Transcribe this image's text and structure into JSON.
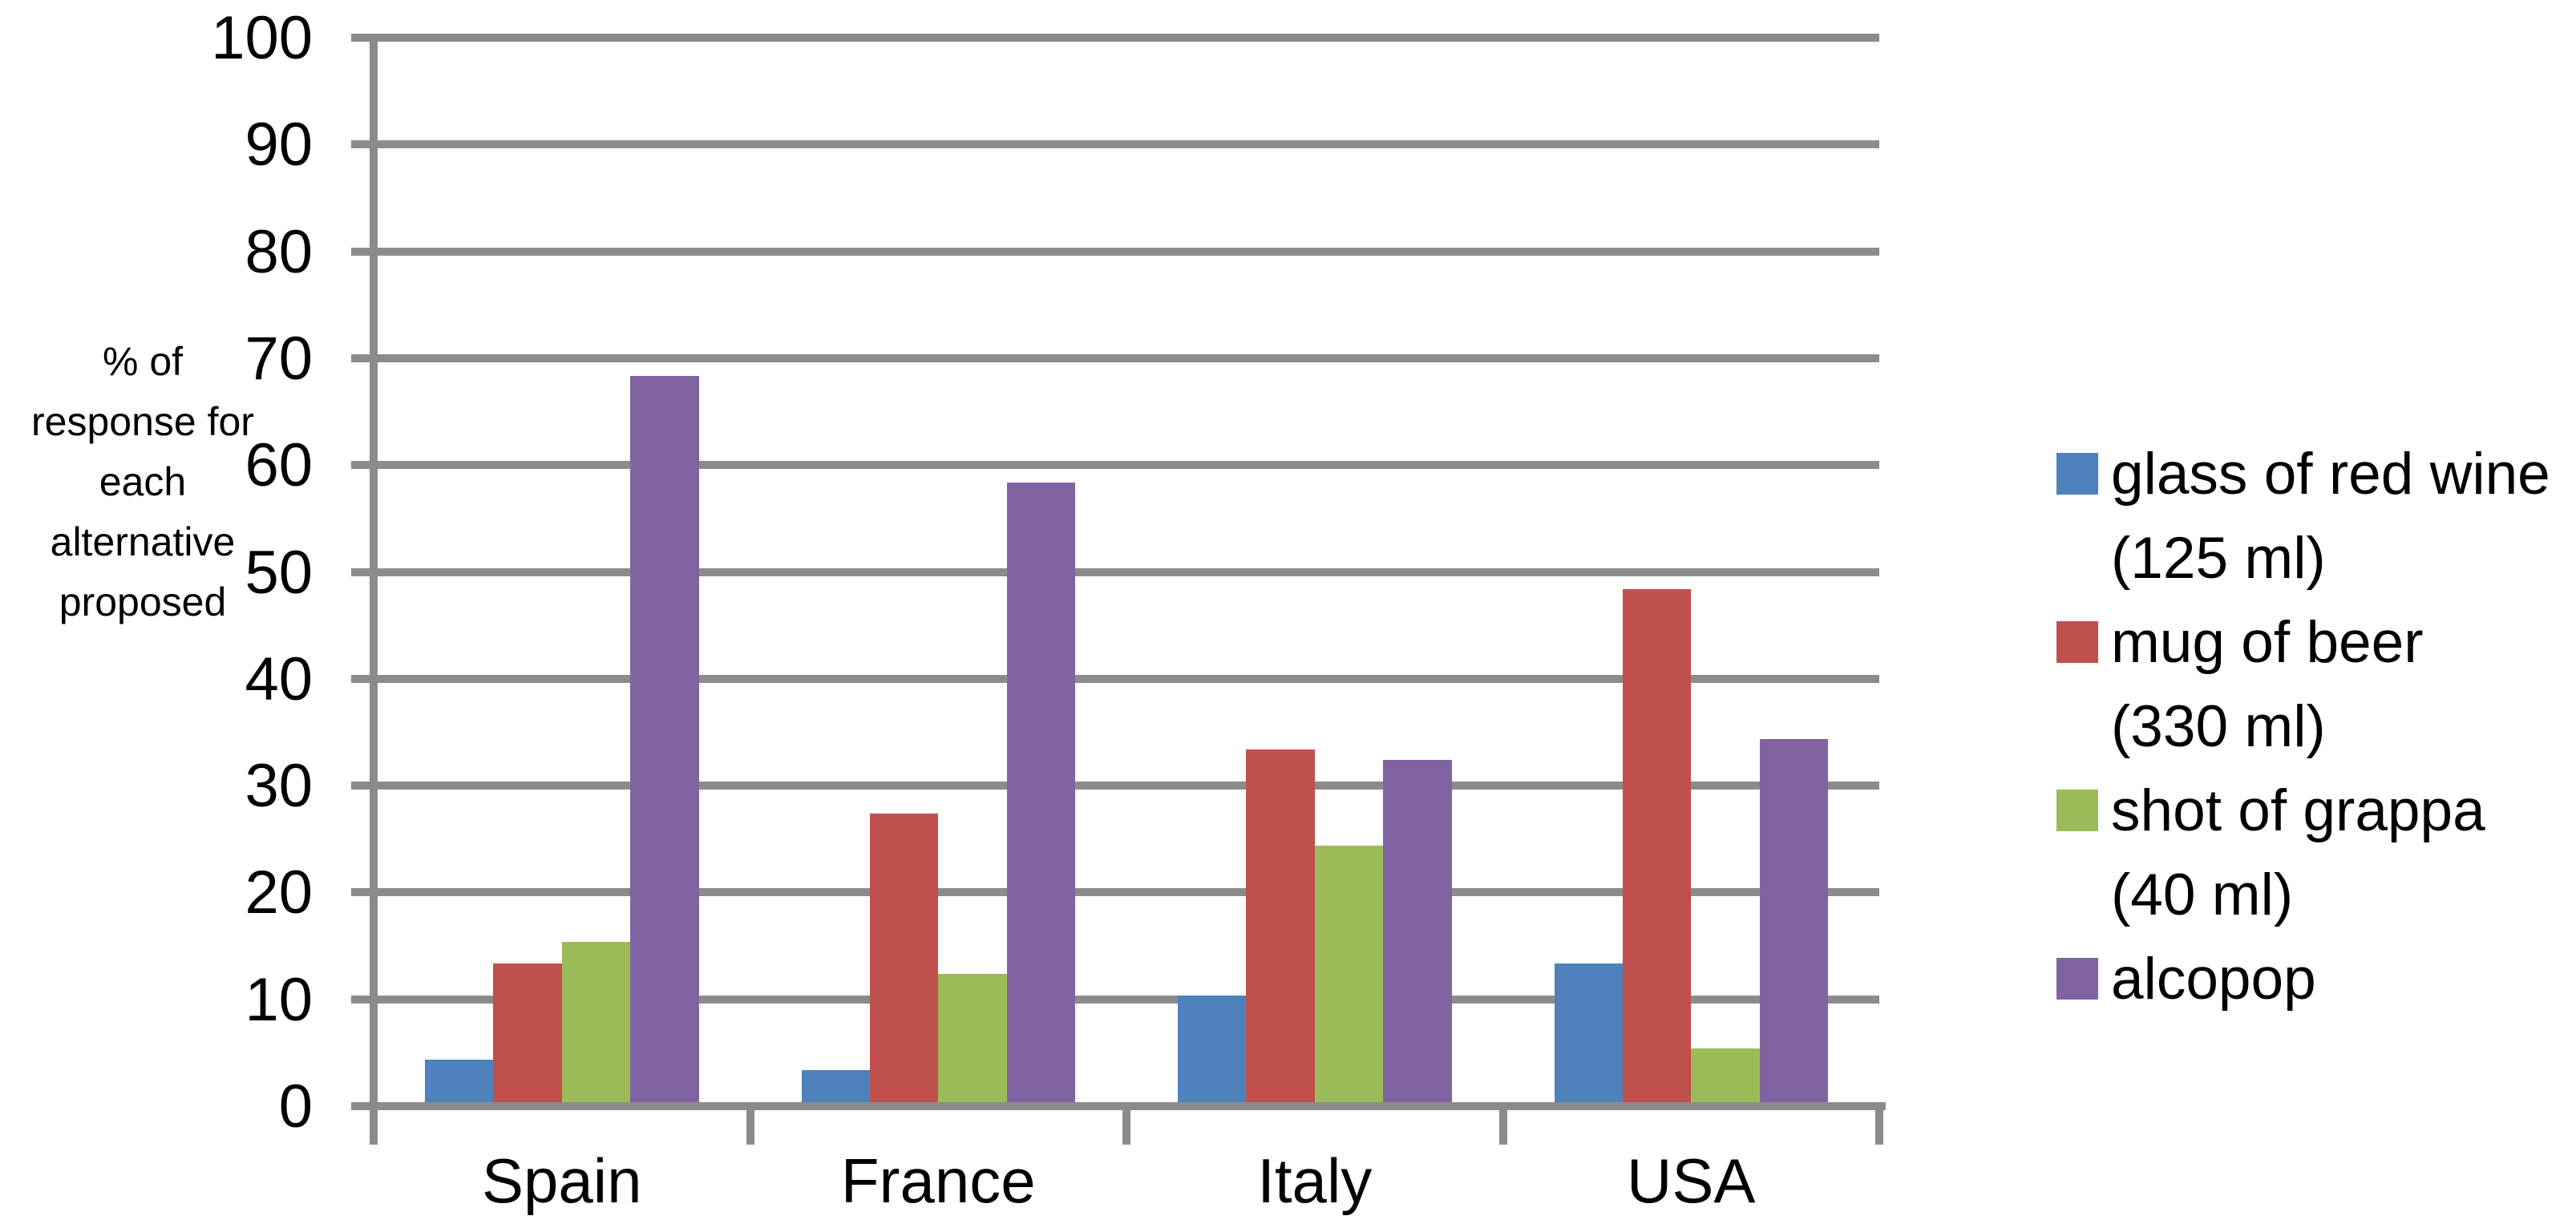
{
  "chart_data": {
    "type": "bar",
    "title": "",
    "categories": [
      "Spain",
      "France",
      "Italy",
      "USA"
    ],
    "series": [
      {
        "name": "glass of red wine (125 ml)",
        "legend_lines": "glass of red wine\n(125 ml)",
        "color": "#4F81BD",
        "values": [
          4,
          3,
          10,
          13
        ]
      },
      {
        "name": "mug of beer (330 ml)",
        "legend_lines": "mug of beer\n(330 ml)",
        "color": "#C0504D",
        "values": [
          13,
          27,
          33,
          48
        ]
      },
      {
        "name": "shot  of grappa (40 ml)",
        "legend_lines": "shot  of grappa\n(40 ml)",
        "color": "#9BBB59",
        "values": [
          15,
          12,
          24,
          5
        ]
      },
      {
        "name": "alcopop",
        "legend_lines": "alcopop",
        "color": "#8064A2",
        "values": [
          68,
          58,
          32,
          34
        ]
      }
    ],
    "ylabel": "% of\nresponse for\neach\nalternative\nproposed",
    "ylim": [
      0,
      100
    ],
    "yticks": [
      0,
      10,
      20,
      30,
      40,
      50,
      60,
      70,
      80,
      90,
      100
    ],
    "grid": true,
    "legend_position": "right",
    "colors": {
      "grid": "#8B8B8B",
      "axis": "#8B8B8B",
      "text": "#000000",
      "background": "#FFFFFF"
    }
  }
}
